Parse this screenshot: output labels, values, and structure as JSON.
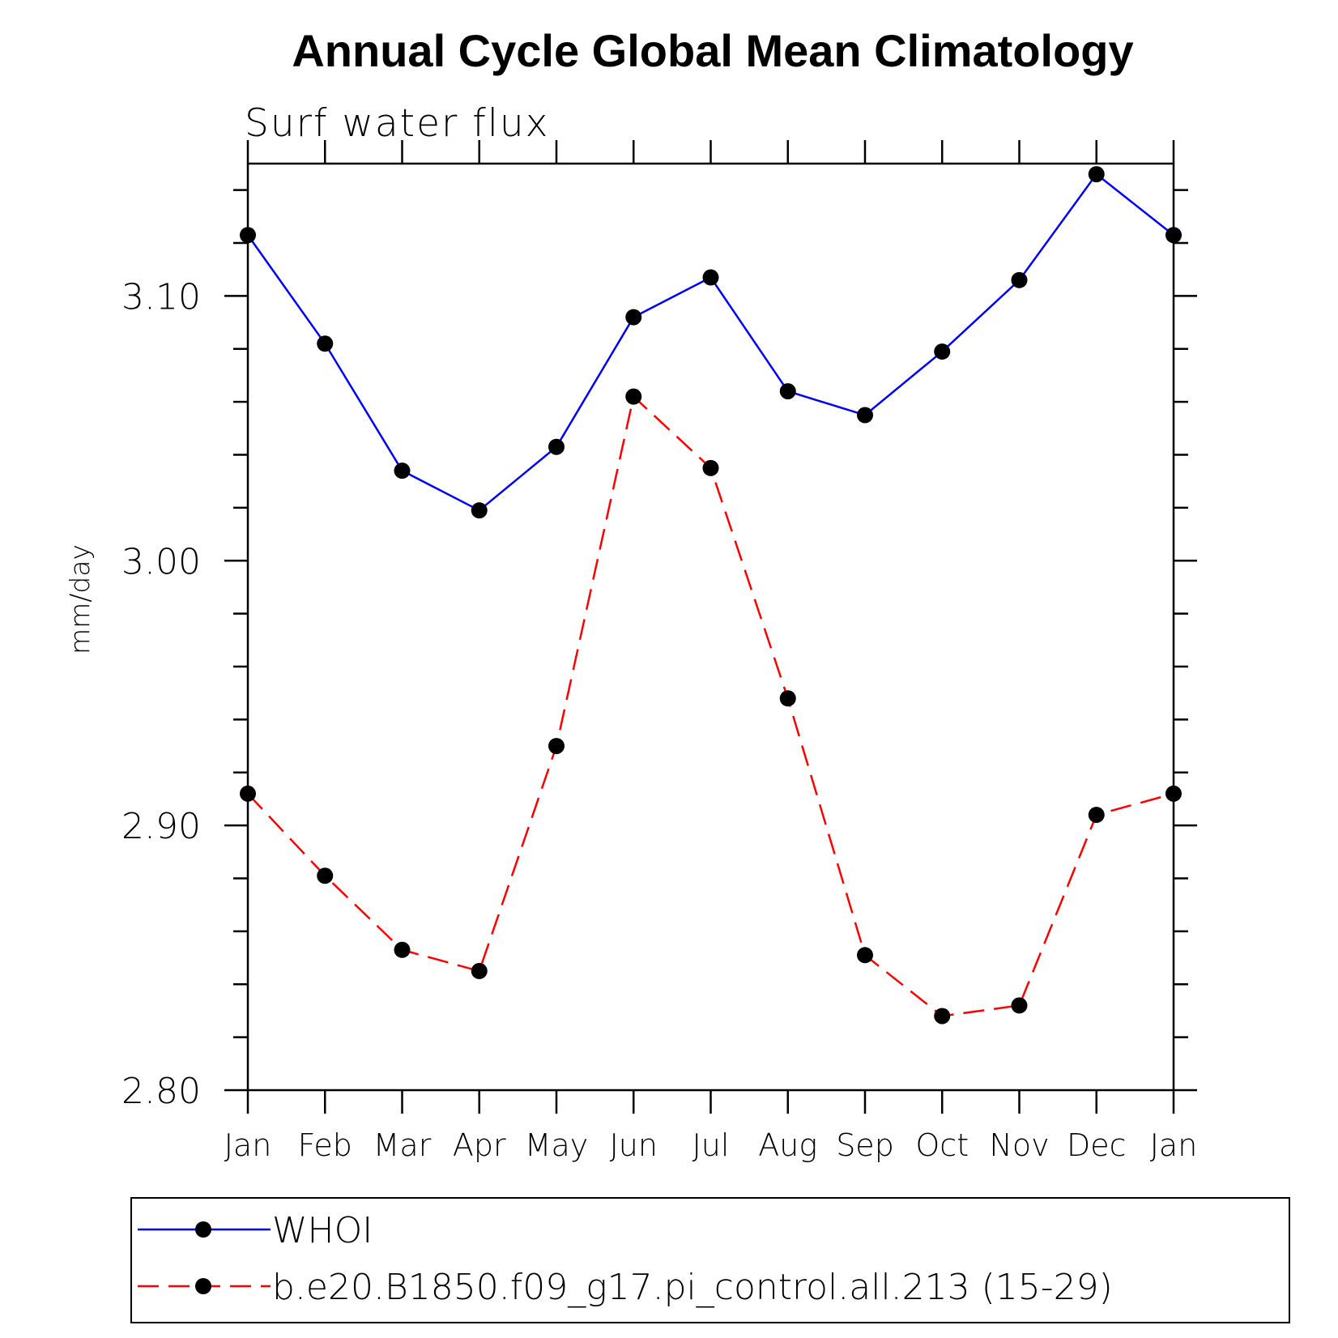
{
  "chart_data": {
    "type": "line",
    "title": "Annual Cycle Global Mean Climatology",
    "subtitle": "Surf water flux",
    "ylabel": "mm/day",
    "xlabel": "",
    "categories": [
      "Jan",
      "Feb",
      "Mar",
      "Apr",
      "May",
      "Jun",
      "Jul",
      "Aug",
      "Sep",
      "Oct",
      "Nov",
      "Dec",
      "Jan"
    ],
    "ylim": [
      2.8,
      3.15
    ],
    "yticks": [
      "2.80",
      "2.90",
      "3.00",
      "3.10"
    ],
    "yticks_values": [
      2.8,
      2.9,
      3.0,
      3.1
    ],
    "yminor_step": 0.02,
    "series": [
      {
        "name": "WHOI",
        "color": "#0000ff",
        "dash": "solid",
        "marker": "filled-circle",
        "values": [
          3.123,
          3.082,
          3.034,
          3.019,
          3.043,
          3.092,
          3.107,
          3.064,
          3.055,
          3.079,
          3.106,
          3.146,
          3.123
        ]
      },
      {
        "name": "b.e20.B1850.f09_g17.pi_control.all.213 (15-29)",
        "color": "#ff0000",
        "dash": "dashed",
        "marker": "filled-circle",
        "values": [
          2.912,
          2.881,
          2.853,
          2.845,
          2.93,
          3.062,
          3.035,
          2.948,
          2.851,
          2.828,
          2.832,
          2.904,
          2.912
        ]
      }
    ],
    "legend_position": "bottom"
  }
}
